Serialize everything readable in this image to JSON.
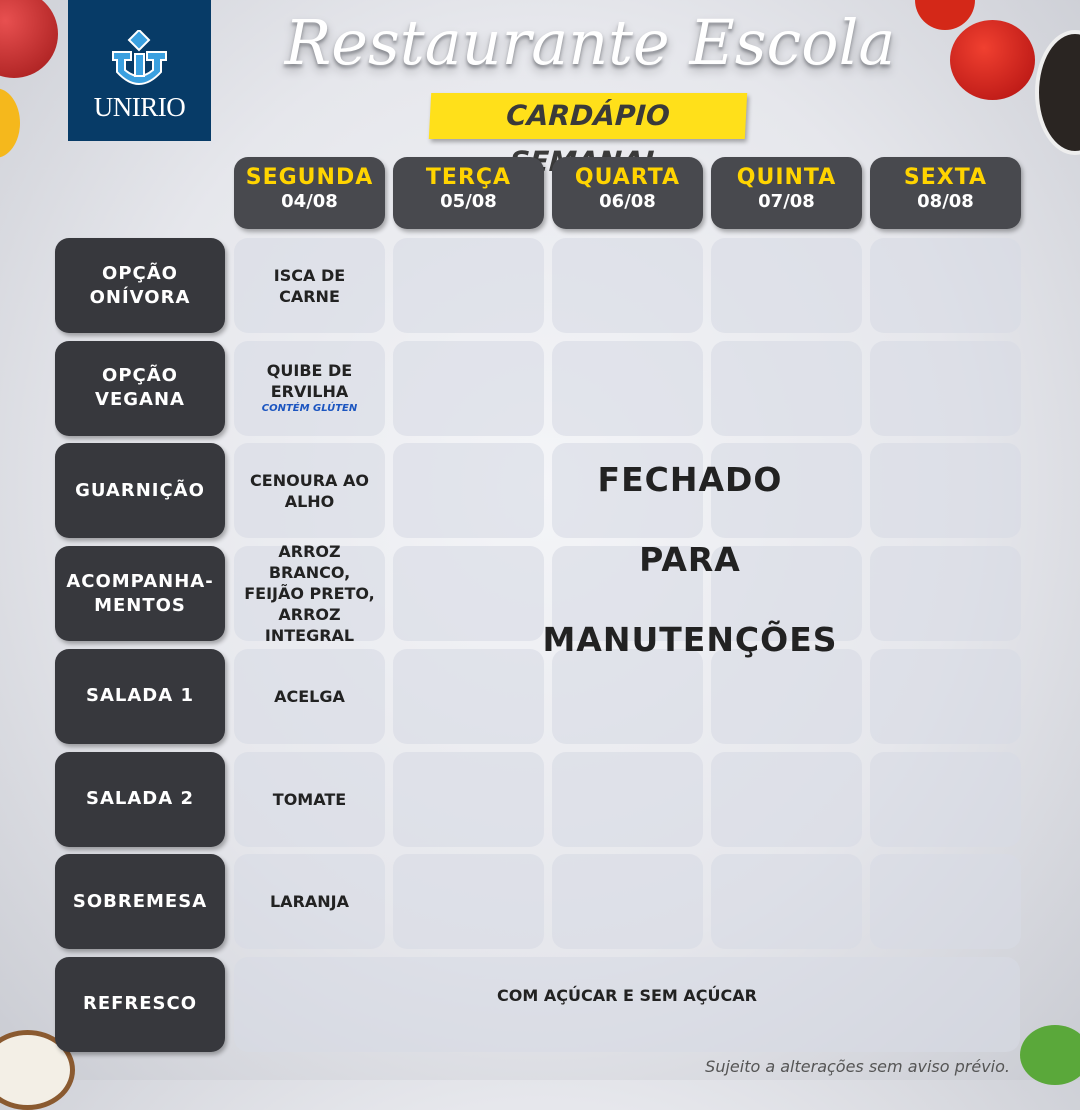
{
  "logo": {
    "text": "UNIRIO"
  },
  "header": {
    "title": "Restaurante Escola",
    "subtitle": "CARDÁPIO SEMANAL"
  },
  "days": [
    {
      "name": "SEGUNDA",
      "date": "04/08"
    },
    {
      "name": "TERÇA",
      "date": "05/08"
    },
    {
      "name": "QUARTA",
      "date": "06/08"
    },
    {
      "name": "QUINTA",
      "date": "07/08"
    },
    {
      "name": "SEXTA",
      "date": "08/08"
    }
  ],
  "rows": [
    {
      "label": "OPÇÃO ONÍVORA",
      "monday": "ISCA DE CARNE"
    },
    {
      "label": "OPÇÃO VEGANA",
      "monday": "QUIBE DE ERVILHA",
      "note": "CONTÉM GLÚTEN"
    },
    {
      "label": "GUARNIÇÃO",
      "monday": "CENOURA AO ALHO"
    },
    {
      "label": "ACOMPANHA-MENTOS",
      "monday": "ARROZ BRANCO, FEIJÃO PRETO, ARROZ INTEGRAL"
    },
    {
      "label": "SALADA 1",
      "monday": "ACELGA"
    },
    {
      "label": "SALADA 2",
      "monday": "TOMATE"
    },
    {
      "label": "SOBREMESA",
      "monday": "LARANJA"
    },
    {
      "label": "REFRESCO",
      "all_week": "COM AÇÚCAR E SEM AÇÚCAR"
    }
  ],
  "closed_notice": [
    "FECHADO",
    "PARA",
    "MANUTENÇÕES"
  ],
  "footer": "Sujeito a alterações sem aviso prévio.",
  "colors": {
    "logo_bg": "#073b67",
    "accent_yellow": "#ffe01a",
    "label_bg": "#37383d",
    "note_blue": "#1b55c0"
  }
}
